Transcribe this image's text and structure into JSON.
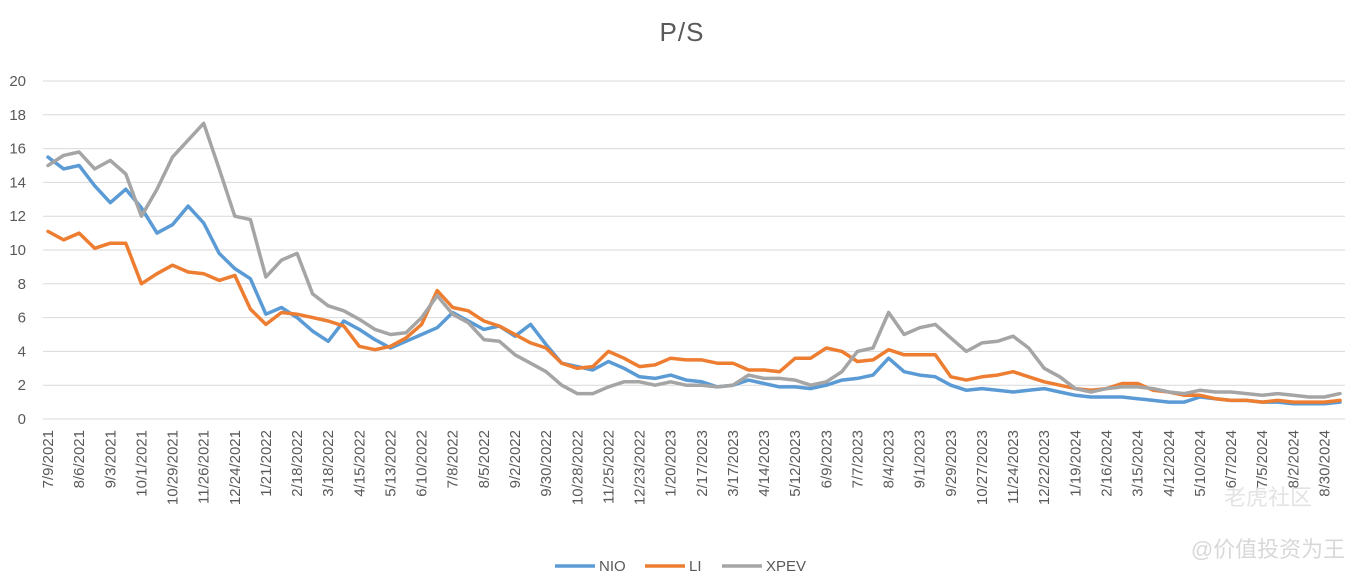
{
  "chart_data": {
    "type": "line",
    "title": "P/S",
    "xlabel": "",
    "ylabel": "",
    "ylim": [
      0,
      20
    ],
    "yticks": [
      0,
      2,
      4,
      6,
      8,
      10,
      12,
      14,
      16,
      18,
      20
    ],
    "grid": true,
    "legend_position": "bottom-center",
    "x_tick_labels": [
      "7/9/2021",
      "8/6/2021",
      "9/3/2021",
      "10/1/2021",
      "10/29/2021",
      "11/26/2021",
      "12/24/2021",
      "1/21/2022",
      "2/18/2022",
      "3/18/2022",
      "4/15/2022",
      "5/13/2022",
      "6/10/2022",
      "7/8/2022",
      "8/5/2022",
      "9/2/2022",
      "9/30/2022",
      "10/28/2022",
      "11/25/2022",
      "12/23/2022",
      "1/20/2023",
      "2/17/2023",
      "3/17/2023",
      "4/14/2023",
      "5/12/2023",
      "6/9/2023",
      "7/7/2023",
      "8/4/2023",
      "9/1/2023",
      "9/29/2023",
      "10/27/2023",
      "11/24/2023",
      "12/22/2023",
      "1/19/2024",
      "2/16/2024",
      "3/15/2024",
      "4/12/2024",
      "5/10/2024",
      "6/7/2024",
      "7/5/2024",
      "8/2/2024",
      "8/30/2024"
    ],
    "x": [
      "7/9/2021",
      "7/23/2021",
      "8/6/2021",
      "8/20/2021",
      "9/3/2021",
      "9/17/2021",
      "10/1/2021",
      "10/15/2021",
      "10/29/2021",
      "11/12/2021",
      "11/26/2021",
      "12/10/2021",
      "12/24/2021",
      "1/7/2022",
      "1/21/2022",
      "2/4/2022",
      "2/18/2022",
      "3/4/2022",
      "3/18/2022",
      "4/1/2022",
      "4/15/2022",
      "4/29/2022",
      "5/13/2022",
      "5/27/2022",
      "6/10/2022",
      "6/24/2022",
      "7/8/2022",
      "7/22/2022",
      "8/5/2022",
      "8/19/2022",
      "9/2/2022",
      "9/16/2022",
      "9/30/2022",
      "10/14/2022",
      "10/28/2022",
      "11/11/2022",
      "11/25/2022",
      "12/9/2022",
      "12/23/2022",
      "1/6/2023",
      "1/20/2023",
      "2/3/2023",
      "2/17/2023",
      "3/3/2023",
      "3/17/2023",
      "3/31/2023",
      "4/14/2023",
      "4/28/2023",
      "5/12/2023",
      "5/26/2023",
      "6/9/2023",
      "6/23/2023",
      "7/7/2023",
      "7/21/2023",
      "8/4/2023",
      "8/18/2023",
      "9/1/2023",
      "9/15/2023",
      "9/29/2023",
      "10/13/2023",
      "10/27/2023",
      "11/10/2023",
      "11/24/2023",
      "12/8/2023",
      "12/22/2023",
      "1/5/2024",
      "1/19/2024",
      "2/2/2024",
      "2/16/2024",
      "3/1/2024",
      "3/15/2024",
      "3/29/2024",
      "4/12/2024",
      "4/26/2024",
      "5/10/2024",
      "5/24/2024",
      "6/7/2024",
      "6/21/2024",
      "7/5/2024",
      "7/19/2024",
      "8/2/2024",
      "8/16/2024",
      "8/30/2024",
      "9/13/2024"
    ],
    "series": [
      {
        "name": "NIO",
        "color": "#5b9bd5",
        "values": [
          15.5,
          14.8,
          15.0,
          13.8,
          12.8,
          13.6,
          12.5,
          11.0,
          11.5,
          12.6,
          11.6,
          9.8,
          8.9,
          8.3,
          6.2,
          6.6,
          6.0,
          5.2,
          4.6,
          5.8,
          5.3,
          4.7,
          4.2,
          4.6,
          5.0,
          5.4,
          6.3,
          5.8,
          5.3,
          5.5,
          4.9,
          5.6,
          4.4,
          3.3,
          3.1,
          2.9,
          3.4,
          3.0,
          2.5,
          2.4,
          2.6,
          2.3,
          2.2,
          1.9,
          2.0,
          2.3,
          2.1,
          1.9,
          1.9,
          1.8,
          2.0,
          2.3,
          2.4,
          2.6,
          3.6,
          2.8,
          2.6,
          2.5,
          2.0,
          1.7,
          1.8,
          1.7,
          1.6,
          1.7,
          1.8,
          1.6,
          1.4,
          1.3,
          1.3,
          1.3,
          1.2,
          1.1,
          1.0,
          1.0,
          1.3,
          1.2,
          1.1,
          1.1,
          1.0,
          1.0,
          0.9,
          0.9,
          0.9,
          1.0
        ]
      },
      {
        "name": "LI",
        "color": "#ed7d31",
        "values": [
          11.1,
          10.6,
          11.0,
          10.1,
          10.4,
          10.4,
          8.0,
          8.6,
          9.1,
          8.7,
          8.6,
          8.2,
          8.5,
          6.5,
          5.6,
          6.3,
          6.2,
          6.0,
          5.8,
          5.5,
          4.3,
          4.1,
          4.3,
          4.8,
          5.6,
          7.6,
          6.6,
          6.4,
          5.8,
          5.5,
          5.0,
          4.5,
          4.2,
          3.3,
          3.0,
          3.1,
          4.0,
          3.6,
          3.1,
          3.2,
          3.6,
          3.5,
          3.5,
          3.3,
          3.3,
          2.9,
          2.9,
          2.8,
          3.6,
          3.6,
          4.2,
          4.0,
          3.4,
          3.5,
          4.1,
          3.8,
          3.8,
          3.8,
          2.5,
          2.3,
          2.5,
          2.6,
          2.8,
          2.5,
          2.2,
          2.0,
          1.8,
          1.7,
          1.8,
          2.1,
          2.1,
          1.7,
          1.6,
          1.4,
          1.4,
          1.2,
          1.1,
          1.1,
          1.0,
          1.1,
          1.0,
          1.0,
          1.0,
          1.1
        ]
      },
      {
        "name": "XPEV",
        "color": "#a5a5a5",
        "values": [
          15.0,
          15.6,
          15.8,
          14.8,
          15.3,
          14.5,
          12.0,
          13.6,
          15.5,
          16.5,
          17.5,
          14.8,
          12.0,
          11.8,
          8.4,
          9.4,
          9.8,
          7.4,
          6.7,
          6.4,
          5.9,
          5.3,
          5.0,
          5.1,
          6.0,
          7.3,
          6.2,
          5.7,
          4.7,
          4.6,
          3.8,
          3.3,
          2.8,
          2.0,
          1.5,
          1.5,
          1.9,
          2.2,
          2.2,
          2.0,
          2.2,
          2.0,
          2.0,
          1.9,
          2.0,
          2.6,
          2.4,
          2.4,
          2.3,
          2.0,
          2.2,
          2.8,
          4.0,
          4.2,
          6.3,
          5.0,
          5.4,
          5.6,
          4.8,
          4.0,
          4.5,
          4.6,
          4.9,
          4.2,
          3.0,
          2.5,
          1.8,
          1.6,
          1.8,
          1.9,
          1.9,
          1.8,
          1.6,
          1.5,
          1.7,
          1.6,
          1.6,
          1.5,
          1.4,
          1.5,
          1.4,
          1.3,
          1.3,
          1.5
        ]
      }
    ]
  },
  "watermark": {
    "logo_text": "老虎社区",
    "user_text": "@价值投资为王"
  }
}
